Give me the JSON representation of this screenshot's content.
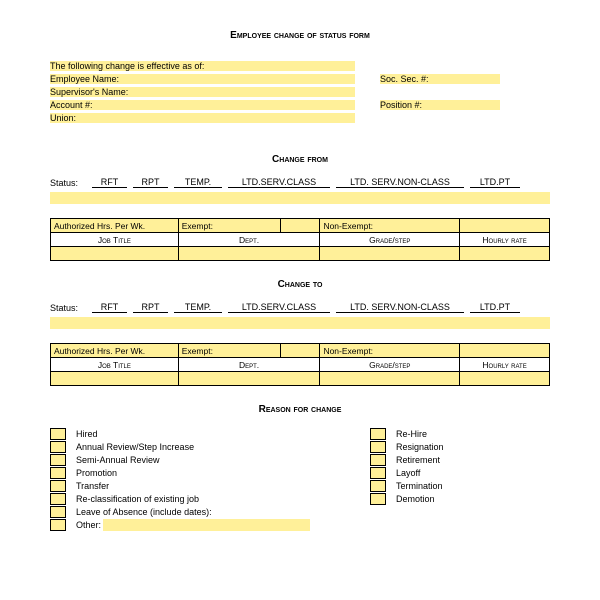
{
  "title": "Employee change of status form",
  "header": {
    "effective": "The following change is effective as of:",
    "employee_name": "Employee Name:",
    "supervisor_name": "Supervisor's Name:",
    "account": "Account #:",
    "union": "Union:",
    "soc_sec": "Soc. Sec. #:",
    "position": "Position #:"
  },
  "change_from_title": "Change from",
  "change_to_title": "Change to",
  "status_label": "Status:",
  "status_options": [
    "RFT",
    "RPT",
    "TEMP.",
    "LTD.SERV.CLASS",
    "LTD. SERV.NON-CLASS",
    "LTD.PT"
  ],
  "table_row1": {
    "c1": "Authorized Hrs. Per Wk.",
    "c2": "Exempt:",
    "c3": "Non-Exempt:"
  },
  "table_row2": {
    "c1": "Job Title",
    "c2": "Dept.",
    "c3": "Grade/step",
    "c4": "Hourly rate"
  },
  "reason_title": "Reason for change",
  "reasons_left": [
    "Hired",
    "Annual Review/Step Increase",
    "Semi-Annual Review",
    "Promotion",
    "Transfer",
    "Re-classification of existing job",
    "Leave of Absence (include dates):",
    "Other:"
  ],
  "reasons_right": [
    "Re-Hire",
    "Resignation",
    "Retirement",
    "Layoff",
    "Termination",
    "Demotion"
  ],
  "colors": {
    "highlight": "#fff099"
  }
}
